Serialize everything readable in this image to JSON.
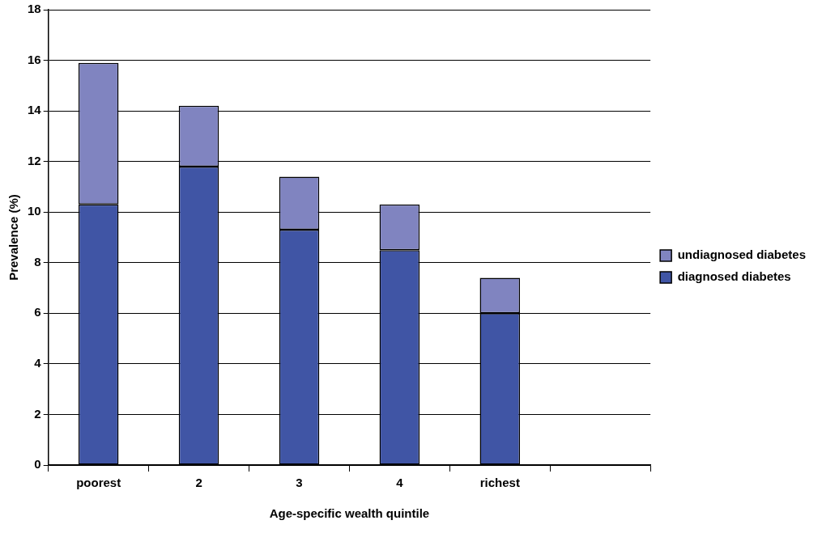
{
  "chart_data": {
    "type": "bar",
    "stacked": true,
    "xlabel": "Age-specific wealth quintile",
    "ylabel": "Prevalence (%)",
    "categories": [
      "poorest",
      "2",
      "3",
      "4",
      "richest",
      null
    ],
    "series": [
      {
        "name": "diagnosed diabetes",
        "color": "#4055a5",
        "values": [
          10.3,
          11.8,
          9.3,
          8.5,
          6.0,
          null
        ]
      },
      {
        "name": "undiagnosed diabetes",
        "color": "#8084c0",
        "values": [
          5.6,
          2.4,
          2.1,
          1.8,
          1.4,
          null
        ]
      }
    ],
    "ylim": [
      0,
      18
    ],
    "yticks": [
      0,
      2,
      4,
      6,
      8,
      10,
      12,
      14,
      16,
      18
    ],
    "grid": "y",
    "legend": "right"
  }
}
